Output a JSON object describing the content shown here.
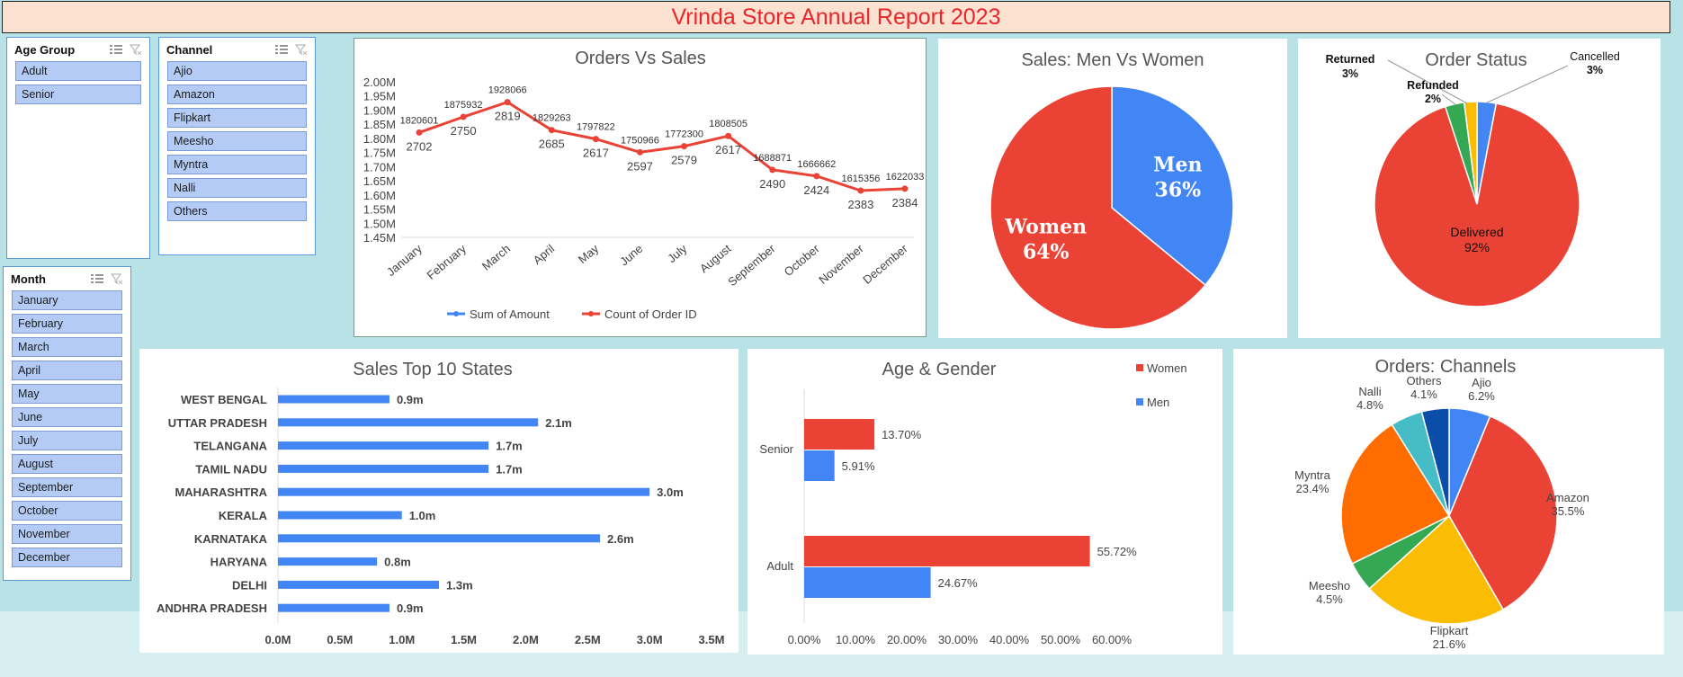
{
  "report_title": "Vrinda Store Annual Report 2023",
  "slicers": {
    "age_group": {
      "title": "Age Group",
      "items": [
        "Adult",
        "Senior"
      ]
    },
    "channel": {
      "title": "Channel",
      "items": [
        "Ajio",
        "Amazon",
        "Flipkart",
        "Meesho",
        "Myntra",
        "Nalli",
        "Others"
      ]
    },
    "month": {
      "title": "Month",
      "items": [
        "January",
        "February",
        "March",
        "April",
        "May",
        "June",
        "July",
        "August",
        "September",
        "October",
        "November",
        "December"
      ]
    }
  },
  "colors": {
    "red": "#ea4335",
    "blue": "#4285f4",
    "title_red": "#e8262b"
  },
  "chart_data": [
    {
      "id": "orders_vs_sales",
      "type": "line",
      "title": "Orders Vs Sales",
      "categories": [
        "January",
        "February",
        "March",
        "April",
        "May",
        "June",
        "July",
        "August",
        "September",
        "October",
        "November",
        "December"
      ],
      "y_ticks": [
        "2.00M",
        "1.95M",
        "1.90M",
        "1.85M",
        "1.80M",
        "1.75M",
        "1.70M",
        "1.65M",
        "1.60M",
        "1.55M",
        "1.50M",
        "1.45M"
      ],
      "ylim": [
        1450000,
        2000000
      ],
      "series": [
        {
          "name": "Sum of Amount",
          "color": "#4285f4",
          "values": [
            1820601,
            1875932,
            1928066,
            1829263,
            1797822,
            1750966,
            1772300,
            1808505,
            1688871,
            1666662,
            1615356,
            1622033
          ]
        },
        {
          "name": "Count of Order ID",
          "color": "#ea4335",
          "values": [
            2702,
            2750,
            2819,
            2685,
            2617,
            2597,
            2579,
            2617,
            2490,
            2424,
            2383,
            2384
          ]
        }
      ],
      "legend": "bottom"
    },
    {
      "id": "sales_men_women",
      "type": "pie",
      "title": "Sales: Men Vs Women",
      "slices": [
        {
          "label": "Men",
          "value": 36,
          "text": "36%",
          "color": "#4285f4"
        },
        {
          "label": "Women",
          "value": 64,
          "text": "64%",
          "color": "#ea4335"
        }
      ]
    },
    {
      "id": "order_status",
      "type": "pie",
      "title": "Order Status",
      "slices": [
        {
          "label": "Cancelled",
          "value": 3,
          "text": "3%",
          "color": "#4285f4"
        },
        {
          "label": "Delivered",
          "value": 92,
          "text": "92%",
          "color": "#ea4335"
        },
        {
          "label": "Returned",
          "value": 3,
          "text": "3%",
          "color": "#34a853"
        },
        {
          "label": "Refunded",
          "value": 2,
          "text": "2%",
          "color": "#fbbc04"
        }
      ]
    },
    {
      "id": "sales_top_states",
      "type": "bar",
      "orientation": "horizontal",
      "title": "Sales Top 10 States",
      "categories": [
        "WEST BENGAL",
        "UTTAR PRADESH",
        "TELANGANA",
        "TAMIL NADU",
        "MAHARASHTRA",
        "KERALA",
        "KARNATAKA",
        "HARYANA",
        "DELHI",
        "ANDHRA PRADESH"
      ],
      "values": [
        0.9,
        2.1,
        1.7,
        1.7,
        3.0,
        1.0,
        2.6,
        0.8,
        1.3,
        0.9
      ],
      "value_labels": [
        "0.9m",
        "2.1m",
        "1.7m",
        "1.7m",
        "3.0m",
        "1.0m",
        "2.6m",
        "0.8m",
        "1.3m",
        "0.9m"
      ],
      "x_ticks": [
        "0.0M",
        "0.5M",
        "1.0M",
        "1.5M",
        "2.0M",
        "2.5M",
        "3.0M",
        "3.5M"
      ],
      "xlim": [
        0,
        3.5
      ],
      "color": "#4285f4"
    },
    {
      "id": "age_gender",
      "type": "bar",
      "orientation": "horizontal",
      "title": "Age & Gender",
      "categories": [
        "Senior",
        "Adult"
      ],
      "series": [
        {
          "name": "Women",
          "color": "#ea4335",
          "values": [
            13.7,
            55.72
          ],
          "labels": [
            "13.70%",
            "55.72%"
          ]
        },
        {
          "name": "Men",
          "color": "#4285f4",
          "values": [
            5.91,
            24.67
          ],
          "labels": [
            "5.91%",
            "24.67%"
          ]
        }
      ],
      "x_ticks": [
        "0.00%",
        "10.00%",
        "20.00%",
        "30.00%",
        "40.00%",
        "50.00%",
        "60.00%"
      ],
      "xlim": [
        0,
        60
      ],
      "legend": "top-right"
    },
    {
      "id": "orders_channels",
      "type": "pie",
      "title": "Orders: Channels",
      "slices": [
        {
          "label": "Ajio",
          "value": 6.2,
          "text": "6.2%",
          "color": "#4285f4"
        },
        {
          "label": "Amazon",
          "value": 35.5,
          "text": "35.5%",
          "color": "#ea4335"
        },
        {
          "label": "Flipkart",
          "value": 21.6,
          "text": "21.6%",
          "color": "#fbbc04"
        },
        {
          "label": "Meesho",
          "value": 4.5,
          "text": "4.5%",
          "color": "#34a853"
        },
        {
          "label": "Myntra",
          "value": 23.4,
          "text": "23.4%",
          "color": "#ff6d01"
        },
        {
          "label": "Nalli",
          "value": 4.8,
          "text": "4.8%",
          "color": "#46bdc6"
        },
        {
          "label": "Others",
          "value": 4.1,
          "text": "4.1%",
          "color": "#0b4eaa"
        }
      ]
    }
  ]
}
